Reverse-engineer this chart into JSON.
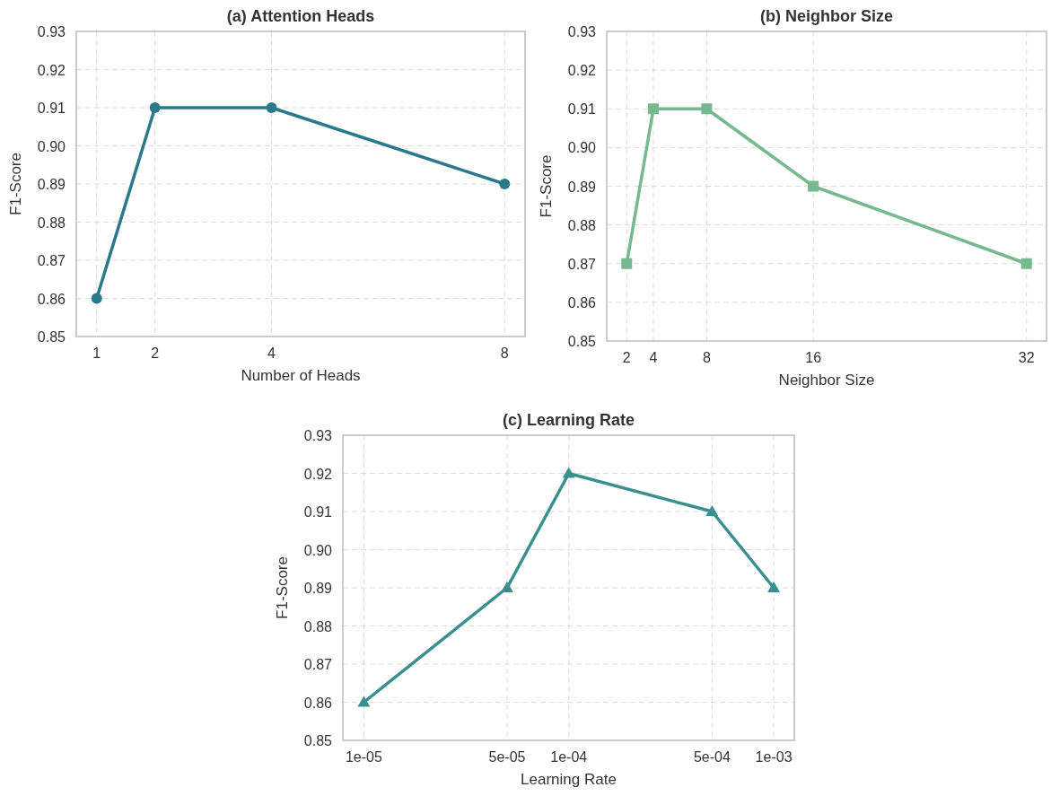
{
  "chart_data": [
    {
      "type": "line",
      "title": "(a) Attention Heads",
      "xlabel": "Number of Heads",
      "ylabel": "F1-Score",
      "x": [
        1,
        2,
        4,
        8
      ],
      "series": [
        {
          "color": "#2b7a8b",
          "values": [
            0.86,
            0.91,
            0.91,
            0.89
          ]
        }
      ],
      "xlim": [
        0.65,
        8.35
      ],
      "xticks": [
        1,
        2,
        4,
        8
      ],
      "ylim": [
        0.85,
        0.93
      ],
      "yticks": [
        {
          "value": 0.85,
          "label": "0.85"
        },
        {
          "value": 0.86,
          "label": "0.86"
        },
        {
          "value": 0.87,
          "label": "0.87"
        },
        {
          "value": 0.88,
          "label": "0.88"
        },
        {
          "value": 0.89,
          "label": "0.89"
        },
        {
          "value": 0.9,
          "label": "0.90"
        },
        {
          "value": 0.91,
          "label": "0.91"
        },
        {
          "value": 0.92,
          "label": "0.92"
        },
        {
          "value": 0.93,
          "label": "0.93"
        }
      ],
      "grid": true,
      "marker": "circle",
      "line_style": "solid"
    },
    {
      "type": "line",
      "title": "(b) Neighbor Size",
      "xlabel": "Neighbor Size",
      "ylabel": "F1-Score",
      "x": [
        2,
        4,
        8,
        16,
        32
      ],
      "series": [
        {
          "color": "#77b98f",
          "values": [
            0.87,
            0.91,
            0.91,
            0.89,
            0.87
          ]
        }
      ],
      "xlim": [
        0.5,
        33.5
      ],
      "xticks": [
        2,
        4,
        8,
        16,
        32
      ],
      "ylim": [
        0.85,
        0.93
      ],
      "yticks": [
        {
          "value": 0.85,
          "label": "0.85"
        },
        {
          "value": 0.86,
          "label": "0.86"
        },
        {
          "value": 0.87,
          "label": "0.87"
        },
        {
          "value": 0.88,
          "label": "0.88"
        },
        {
          "value": 0.89,
          "label": "0.89"
        },
        {
          "value": 0.9,
          "label": "0.90"
        },
        {
          "value": 0.91,
          "label": "0.91"
        },
        {
          "value": 0.92,
          "label": "0.92"
        },
        {
          "value": 0.93,
          "label": "0.93"
        }
      ],
      "grid": true,
      "marker": "square",
      "line_style": "solid"
    },
    {
      "type": "line",
      "title": "(c) Learning Rate",
      "xlabel": "Learning Rate",
      "ylabel": "F1-Score",
      "x": [
        1e-05,
        5e-05,
        0.0001,
        0.0005,
        0.001
      ],
      "series": [
        {
          "color": "#3a8f8f",
          "values": [
            0.86,
            0.89,
            0.92,
            0.91,
            0.89
          ]
        }
      ],
      "log": "x",
      "xlim": [
        7.9e-06,
        0.00126
      ],
      "xticks": [
        {
          "value": 1e-05,
          "label": "1e-05"
        },
        {
          "value": 5e-05,
          "label": "5e-05"
        },
        {
          "value": 0.0001,
          "label": "1e-04"
        },
        {
          "value": 0.0005,
          "label": "5e-04"
        },
        {
          "value": 0.001,
          "label": "1e-03"
        }
      ],
      "ylim": [
        0.85,
        0.93
      ],
      "yticks": [
        {
          "value": 0.85,
          "label": "0.85"
        },
        {
          "value": 0.86,
          "label": "0.86"
        },
        {
          "value": 0.87,
          "label": "0.87"
        },
        {
          "value": 0.88,
          "label": "0.88"
        },
        {
          "value": 0.89,
          "label": "0.89"
        },
        {
          "value": 0.9,
          "label": "0.90"
        },
        {
          "value": 0.91,
          "label": "0.91"
        },
        {
          "value": 0.92,
          "label": "0.92"
        },
        {
          "value": 0.93,
          "label": "0.93"
        }
      ],
      "grid": true,
      "marker": "triangle",
      "line_style": "solid"
    }
  ]
}
